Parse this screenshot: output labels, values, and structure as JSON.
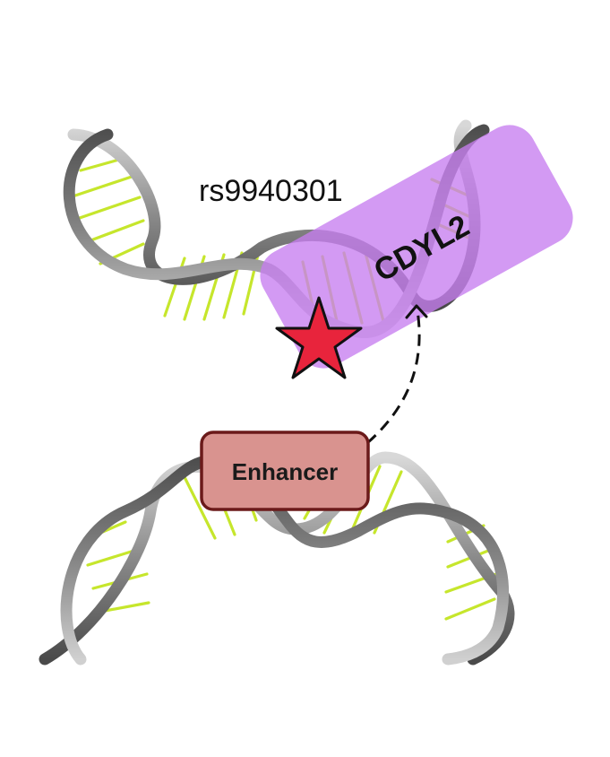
{
  "snp": {
    "label": "rs9940301"
  },
  "gene": {
    "label": "CDYL2"
  },
  "enhancer": {
    "label": "Enhancer"
  },
  "colors": {
    "strand": "#777777",
    "strand_light": "#cfcfcf",
    "base_pair": "#c6e62c",
    "gene_box": "#c77ef0",
    "enhancer_fill": "#d9938f",
    "enhancer_border": "#6b1a1a",
    "star_fill": "#e8243c",
    "arrow": "#111111"
  }
}
